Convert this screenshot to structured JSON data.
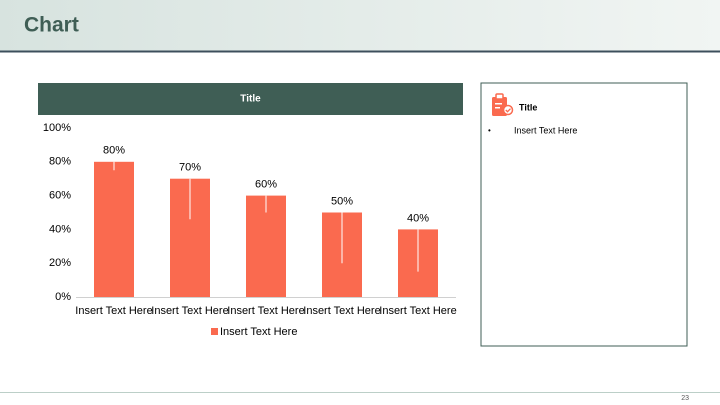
{
  "header": {
    "title": "Chart"
  },
  "page_number": "23",
  "side_panel": {
    "title": "Title",
    "bullets": [
      "Insert Text Here"
    ]
  },
  "chart_data": {
    "type": "bar",
    "title": "Title",
    "categories": [
      "Insert Text Here",
      "Insert Text Here",
      "Insert Text Here",
      "Insert Text Here",
      "Insert Text Here"
    ],
    "series": [
      {
        "name": "Insert Text Here",
        "color": "#fa6a4f",
        "values": [
          80,
          70,
          60,
          50,
          40
        ],
        "value_labels": [
          "80%",
          "70%",
          "60%",
          "50%",
          "40%"
        ],
        "errors_minus": [
          5,
          24,
          10,
          30,
          25
        ]
      }
    ],
    "ylim": [
      0,
      100
    ],
    "yticks": [
      {
        "value": 0,
        "label": "0%"
      },
      {
        "value": 20,
        "label": "20%"
      },
      {
        "value": 40,
        "label": "40%"
      },
      {
        "value": 60,
        "label": "60%"
      },
      {
        "value": 80,
        "label": "80%"
      },
      {
        "value": 100,
        "label": "100%"
      }
    ],
    "grid": false,
    "legend": "bottom"
  }
}
